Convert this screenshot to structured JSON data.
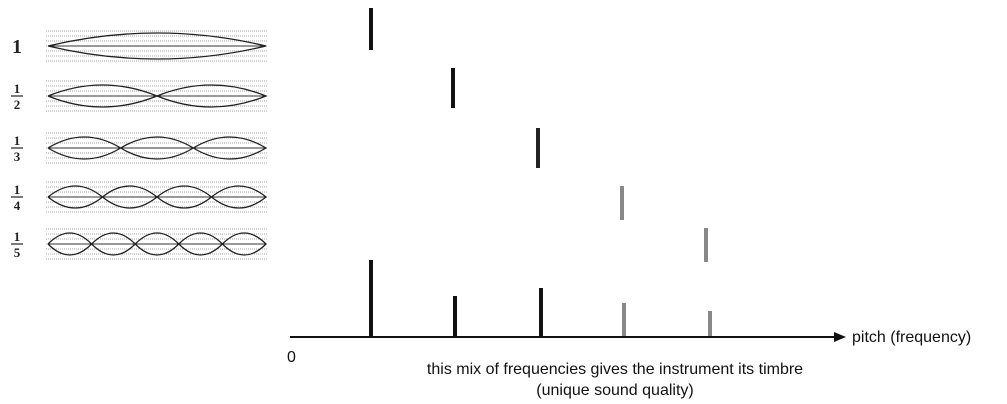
{
  "harmonics": [
    {
      "label": "1"
    },
    {
      "numerator": "1",
      "denominator": "2"
    },
    {
      "numerator": "1",
      "denominator": "3"
    },
    {
      "numerator": "1",
      "denominator": "4"
    },
    {
      "numerator": "1",
      "denominator": "5"
    }
  ],
  "axis": {
    "origin": "0",
    "label": "pitch (frequency)"
  },
  "caption": [
    "this mix of frequencies gives the instrument its timbre",
    "(unique sound quality)"
  ]
}
